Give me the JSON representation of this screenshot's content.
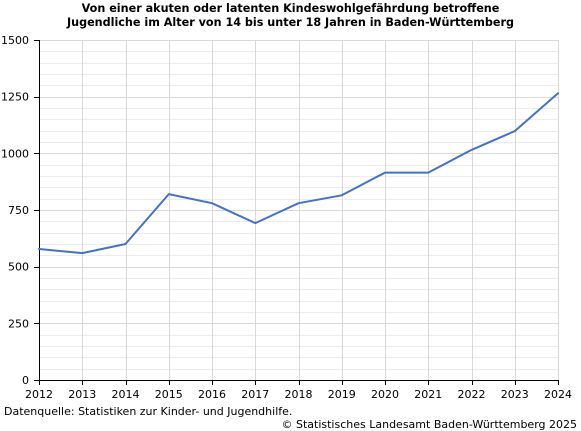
{
  "chart_data": {
    "type": "line",
    "title": [
      "Von einer akuten oder latenten Kindeswohlgefährdung betroffene",
      "Jugendliche im Alter von 14 bis unter 18 Jahren in Baden-Württemberg"
    ],
    "x": [
      "2012",
      "2013",
      "2014",
      "2015",
      "2016",
      "2017",
      "2018",
      "2019",
      "2020",
      "2021",
      "2022",
      "2023",
      "2024"
    ],
    "series": [
      {
        "values": [
          578,
          560,
          600,
          820,
          780,
          692,
          780,
          815,
          915,
          915,
          1015,
          1098,
          1265
        ]
      }
    ],
    "ylim": [
      0,
      1500
    ],
    "yticks": [
      0,
      250,
      500,
      750,
      1000,
      1250,
      1500
    ],
    "ytick_labels": [
      "0",
      "250",
      "500",
      "750",
      "1000",
      "1250",
      "1500"
    ],
    "grid": true,
    "line_color": "#4472c4",
    "grid_color": "#d9d9d9"
  },
  "footer": {
    "source": "Datenquelle: Statistiken zur Kinder- und Jugendhilfe.",
    "copyright": "© Statistisches Landesamt Baden-Württemberg 2025"
  }
}
